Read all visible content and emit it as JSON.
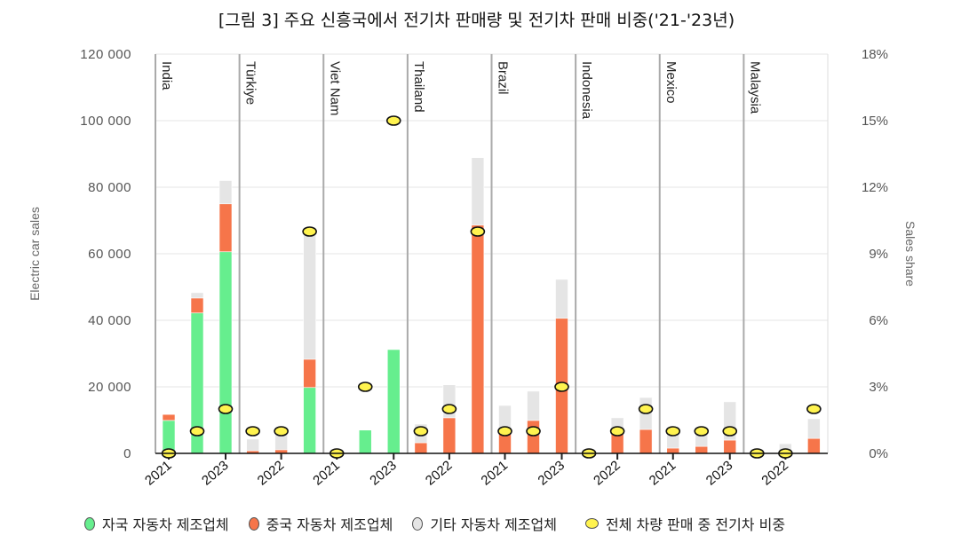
{
  "chart_data": {
    "type": "bar",
    "title": "[그림 3] 주요 신흥국에서 전기차 판매량 및 전기차 판매 비중('21-'23년)",
    "ylabel": "Electric car sales",
    "y2label": "Sales share",
    "ylim": [
      0,
      120000
    ],
    "y2lim": [
      0,
      18
    ],
    "yticks": [
      "0",
      "20 000",
      "40 000",
      "60 000",
      "80 000",
      "100 000",
      "120 000"
    ],
    "y2ticks": [
      "0%",
      "3%",
      "6%",
      "9%",
      "12%",
      "15%",
      "18%"
    ],
    "grid": true,
    "stacked": true,
    "legend_position": "bottom",
    "years": [
      "2021",
      "2022",
      "2023"
    ],
    "colors": {
      "domestic": "#66ee8e",
      "chinese": "#f6754a",
      "other": "#e5e5e5",
      "share": "#fff34f"
    },
    "panels": [
      {
        "name": "India",
        "xticks": [
          "2021",
          "",
          "2023"
        ],
        "domestic": [
          9900,
          42200,
          60600
        ],
        "chinese": [
          1800,
          4500,
          14400
        ],
        "other": [
          0,
          1600,
          7000
        ],
        "share": [
          0,
          1,
          2
        ]
      },
      {
        "name": "Türkiye",
        "xticks": [
          "",
          "2022",
          ""
        ],
        "domestic": [
          0,
          0,
          19800
        ],
        "chinese": [
          800,
          1100,
          8500
        ],
        "other": [
          3500,
          5400,
          38700
        ],
        "share": [
          1,
          1,
          10
        ]
      },
      {
        "name": "Viet Nam",
        "xticks": [
          "2021",
          "",
          "2023"
        ],
        "domestic": [
          0,
          7000,
          31200
        ],
        "chinese": [
          0,
          0,
          0
        ],
        "other": [
          0,
          0,
          0
        ],
        "share": [
          0,
          3,
          15
        ]
      },
      {
        "name": "Thailand",
        "xticks": [
          "",
          "2022",
          ""
        ],
        "domestic": [
          0,
          0,
          0
        ],
        "chinese": [
          3200,
          10700,
          68600
        ],
        "other": [
          5600,
          9900,
          20300
        ],
        "share": [
          1,
          2,
          10
        ]
      },
      {
        "name": "Brazil",
        "xticks": [
          "2021",
          "",
          "2023"
        ],
        "domestic": [
          0,
          0,
          0
        ],
        "chinese": [
          7000,
          9900,
          40600
        ],
        "other": [
          7400,
          8800,
          11700
        ],
        "share": [
          1,
          1,
          3
        ]
      },
      {
        "name": "Indonesia",
        "xticks": [
          "",
          "2022",
          ""
        ],
        "domestic": [
          0,
          0,
          0
        ],
        "chinese": [
          0,
          6700,
          7200
        ],
        "other": [
          0,
          4000,
          9600
        ],
        "share": [
          0,
          1,
          2
        ]
      },
      {
        "name": "Mexico",
        "xticks": [
          "2021",
          "",
          "2023"
        ],
        "domestic": [
          0,
          0,
          0
        ],
        "chinese": [
          1600,
          2100,
          4000
        ],
        "other": [
          4800,
          4000,
          11500
        ],
        "share": [
          1,
          1,
          1
        ]
      },
      {
        "name": "Malaysia",
        "xticks": [
          "",
          "2022",
          ""
        ],
        "domestic": [
          0,
          0,
          0
        ],
        "chinese": [
          0,
          0,
          4500
        ],
        "other": [
          0,
          2900,
          5900
        ],
        "share": [
          0,
          0,
          2
        ]
      }
    ],
    "legend": [
      {
        "key": "domestic",
        "label": "자국 자동차 제조업체"
      },
      {
        "key": "chinese",
        "label": "중국 자동차 제조업체"
      },
      {
        "key": "other",
        "label": "기타 자동차 제조업체"
      },
      {
        "key": "share",
        "label": "전체 차량 판매 중 전기차 비중"
      }
    ]
  }
}
